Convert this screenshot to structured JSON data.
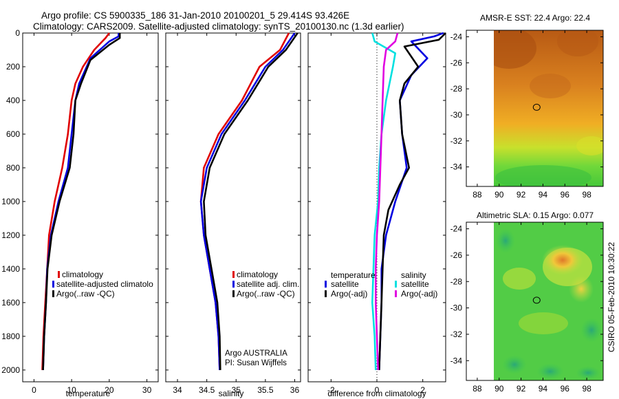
{
  "title": {
    "line1": "Argo profile: CS 5900335_186 31-Jan-2010 20100201_5 29.414S 93.426E",
    "line2": "Climatology: CARS2009. Satellite-adjusted climatology: synTS_20100130.nc (1.3d earlier)"
  },
  "side_label": "CSIRO 05-Feb-2010 10:30:22",
  "panel_annotation": [
    "Argo AUSTRALIA",
    "PI: Susan Wijffels"
  ],
  "colors": {
    "clim": "#e00000",
    "sat": "#0000e0",
    "argo": "#000000",
    "cyan": "#00e0e0",
    "magenta": "#e000e0"
  },
  "chart_data": [
    {
      "type": "line",
      "id": "temperature",
      "xlabel": "temperature",
      "xlim": [
        -3,
        33
      ],
      "ylim": [
        2070,
        0
      ],
      "xticks": [
        0,
        10,
        20,
        30
      ],
      "yticks": [
        0,
        200,
        400,
        600,
        800,
        1000,
        1200,
        1400,
        1600,
        1800,
        2000
      ],
      "legend": [
        "climatology",
        "satellite-adjusted climatolo",
        "Argo(..raw -QC)"
      ],
      "series": [
        {
          "name": "climatology",
          "color_key": "clim",
          "points": [
            [
              20,
              0
            ],
            [
              19,
              30
            ],
            [
              16,
              100
            ],
            [
              13,
              200
            ],
            [
              11,
              300
            ],
            [
              10,
              400
            ],
            [
              9,
              600
            ],
            [
              7.5,
              800
            ],
            [
              5.5,
              1000
            ],
            [
              4,
              1200
            ],
            [
              3.5,
              1400
            ],
            [
              3,
              1600
            ],
            [
              2.5,
              1800
            ],
            [
              2.2,
              2000
            ]
          ]
        },
        {
          "name": "satellite-adjusted climatology",
          "color_key": "sat",
          "points": [
            [
              22.5,
              0
            ],
            [
              22.5,
              20
            ],
            [
              20,
              50
            ],
            [
              15,
              150
            ],
            [
              12,
              300
            ],
            [
              11,
              400
            ],
            [
              10,
              600
            ],
            [
              9,
              800
            ],
            [
              6.5,
              1000
            ],
            [
              4.5,
              1200
            ],
            [
              3.5,
              1400
            ],
            [
              3.2,
              1600
            ],
            [
              2.7,
              1800
            ],
            [
              2.4,
              2000
            ]
          ]
        },
        {
          "name": "Argo(..raw -QC)",
          "color_key": "argo",
          "points": [
            [
              22.8,
              0
            ],
            [
              22.8,
              30
            ],
            [
              20,
              70
            ],
            [
              15,
              160
            ],
            [
              12.5,
              300
            ],
            [
              11,
              400
            ],
            [
              10.5,
              600
            ],
            [
              9.5,
              800
            ],
            [
              6.8,
              1000
            ],
            [
              4.7,
              1200
            ],
            [
              3.6,
              1400
            ],
            [
              3.2,
              1600
            ],
            [
              2.7,
              1800
            ],
            [
              2.4,
              2000
            ]
          ]
        }
      ]
    },
    {
      "type": "line",
      "id": "salinity",
      "xlabel": "salinity",
      "xlim": [
        33.8,
        36.1
      ],
      "ylim": [
        2070,
        0
      ],
      "xticks": [
        34,
        34.5,
        35,
        35.5,
        36
      ],
      "yticks": [
        0,
        200,
        400,
        600,
        800,
        1000,
        1200,
        1400,
        1600,
        1800,
        2000
      ],
      "legend": [
        "climatology",
        "satellite adj. clim.",
        "Argo(..raw -QC)"
      ],
      "series": [
        {
          "name": "climatology",
          "color_key": "clim",
          "points": [
            [
              35.9,
              0
            ],
            [
              35.75,
              100
            ],
            [
              35.4,
              200
            ],
            [
              35.1,
              400
            ],
            [
              34.7,
              600
            ],
            [
              34.45,
              800
            ],
            [
              34.4,
              1000
            ],
            [
              34.45,
              1200
            ],
            [
              34.55,
              1400
            ],
            [
              34.65,
              1600
            ],
            [
              34.7,
              1800
            ],
            [
              34.72,
              2000
            ]
          ]
        },
        {
          "name": "satellite adj. clim.",
          "color_key": "sat",
          "points": [
            [
              36.0,
              0
            ],
            [
              35.8,
              100
            ],
            [
              35.5,
              200
            ],
            [
              35.15,
              400
            ],
            [
              34.75,
              600
            ],
            [
              34.5,
              800
            ],
            [
              34.4,
              1000
            ],
            [
              34.45,
              1200
            ],
            [
              34.55,
              1400
            ],
            [
              34.65,
              1600
            ],
            [
              34.7,
              1800
            ],
            [
              34.72,
              2000
            ]
          ]
        },
        {
          "name": "Argo(..raw -QC)",
          "color_key": "argo",
          "points": [
            [
              36.05,
              0
            ],
            [
              35.85,
              100
            ],
            [
              35.55,
              200
            ],
            [
              35.2,
              400
            ],
            [
              34.8,
              600
            ],
            [
              34.55,
              800
            ],
            [
              34.45,
              1000
            ],
            [
              34.48,
              1200
            ],
            [
              34.58,
              1400
            ],
            [
              34.68,
              1600
            ],
            [
              34.72,
              1800
            ],
            [
              34.73,
              2000
            ]
          ]
        }
      ]
    },
    {
      "type": "line",
      "id": "difference",
      "xlabel": "difference from climatology",
      "xlim": [
        -3,
        3
      ],
      "ylim": [
        2070,
        0
      ],
      "xticks": [
        -2,
        0,
        2
      ],
      "yticks": [
        0,
        200,
        400,
        600,
        800,
        1000,
        1200,
        1400,
        1600,
        1800,
        2000
      ],
      "legend_temperature_title": "temperature",
      "legend_salinity_title": "salinity",
      "legend": [
        "satellite",
        "Argo(-adj)",
        "satellite",
        "Argo(-adj)"
      ],
      "series": [
        {
          "name": "temperature satellite",
          "color_key": "sat",
          "points": [
            [
              2.9,
              0
            ],
            [
              2.5,
              20
            ],
            [
              1.5,
              50
            ],
            [
              2.2,
              150
            ],
            [
              1.5,
              250
            ],
            [
              1.0,
              400
            ],
            [
              1.1,
              600
            ],
            [
              1.3,
              800
            ],
            [
              0.8,
              1000
            ],
            [
              0.4,
              1200
            ],
            [
              0.2,
              1400
            ],
            [
              0.2,
              1600
            ],
            [
              0.15,
              1800
            ],
            [
              0.1,
              2000
            ]
          ]
        },
        {
          "name": "temperature Argo(-adj)",
          "color_key": "argo",
          "points": [
            [
              3.0,
              0
            ],
            [
              2.7,
              40
            ],
            [
              1.2,
              80
            ],
            [
              1.8,
              200
            ],
            [
              1.2,
              300
            ],
            [
              1.0,
              400
            ],
            [
              1.1,
              600
            ],
            [
              1.4,
              800
            ],
            [
              1.0,
              900
            ],
            [
              0.5,
              1050
            ],
            [
              0.3,
              1200
            ],
            [
              0.25,
              1400
            ],
            [
              0.2,
              1600
            ],
            [
              0.15,
              1800
            ],
            [
              0.1,
              2000
            ]
          ]
        },
        {
          "name": "salinity satellite",
          "color_key": "cyan",
          "points": [
            [
              -0.2,
              0
            ],
            [
              -0.1,
              50
            ],
            [
              0.8,
              120
            ],
            [
              0.7,
              200
            ],
            [
              0.4,
              400
            ],
            [
              0.2,
              600
            ],
            [
              0.1,
              800
            ],
            [
              0.05,
              1000
            ],
            [
              -0.1,
              1200
            ],
            [
              -0.15,
              1400
            ],
            [
              -0.2,
              1600
            ],
            [
              -0.1,
              1800
            ],
            [
              -0.05,
              2000
            ]
          ]
        },
        {
          "name": "salinity Argo(-adj)",
          "color_key": "magenta",
          "points": [
            [
              0.9,
              0
            ],
            [
              0.8,
              50
            ],
            [
              0.4,
              100
            ],
            [
              0.3,
              200
            ],
            [
              0.25,
              400
            ],
            [
              0.2,
              600
            ],
            [
              0.15,
              800
            ],
            [
              0.1,
              1000
            ],
            [
              0.0,
              1200
            ],
            [
              -0.05,
              1400
            ],
            [
              -0.05,
              1600
            ],
            [
              0.0,
              1800
            ],
            [
              0.05,
              2000
            ]
          ]
        }
      ]
    },
    {
      "type": "heatmap",
      "id": "sst-map",
      "title": "AMSR-E SST: 22.4 Argo: 22.4",
      "xlim": [
        87,
        99.5
      ],
      "ylim": [
        -35.5,
        -23.5
      ],
      "xticks": [
        88,
        90,
        92,
        94,
        96,
        98
      ],
      "yticks": [
        -24,
        -26,
        -28,
        -30,
        -32,
        -34
      ],
      "data_xlim": [
        90,
        99.5
      ],
      "marker": [
        93.426,
        -29.414
      ]
    },
    {
      "type": "heatmap",
      "id": "sla-map",
      "title": "Altimetric SLA: 0.15 Argo: 0.077",
      "xlim": [
        87,
        99.5
      ],
      "ylim": [
        -35.5,
        -23.5
      ],
      "xticks": [
        88,
        90,
        92,
        94,
        96,
        98
      ],
      "yticks": [
        -24,
        -26,
        -28,
        -30,
        -32,
        -34
      ],
      "data_xlim": [
        90,
        99.5
      ],
      "marker": [
        93.426,
        -29.414
      ]
    }
  ]
}
